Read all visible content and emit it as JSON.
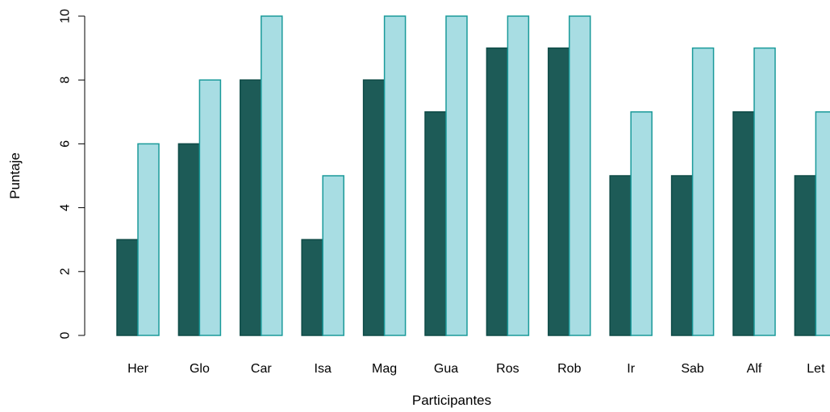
{
  "chart_data": {
    "type": "bar",
    "title": "",
    "xlabel": "Participantes",
    "ylabel": "Puntaje",
    "ylim": [
      0,
      10
    ],
    "yticks": [
      0,
      2,
      4,
      6,
      8,
      10
    ],
    "grid": false,
    "legend": "none",
    "categories": [
      "Her",
      "Glo",
      "Car",
      "Isa",
      "Mag",
      "Gua",
      "Ros",
      "Rob",
      "Ir",
      "Sab",
      "Alf",
      "Let"
    ],
    "series": [
      {
        "values": [
          3,
          6,
          8,
          3,
          8,
          7,
          9,
          9,
          5,
          5,
          7,
          5
        ],
        "color": "#1d5b57",
        "stroke": "#0d4a46"
      },
      {
        "values": [
          6,
          8,
          10,
          5,
          10,
          10,
          10,
          10,
          7,
          9,
          9,
          7
        ],
        "color": "#a8dde3",
        "stroke": "#1a9a9a"
      }
    ]
  }
}
